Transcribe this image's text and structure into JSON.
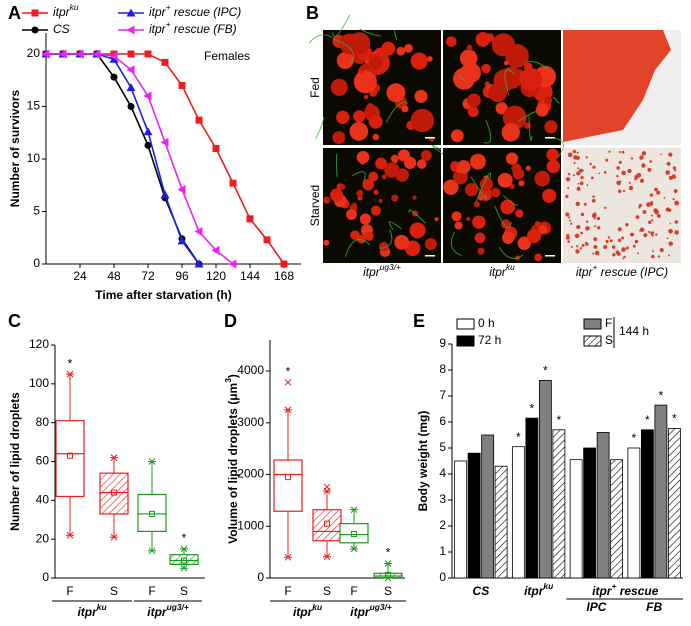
{
  "chart_data": [
    {
      "panel": "A",
      "type": "line",
      "annotation": "Females",
      "xlabel": "Time after starvation (h)",
      "ylabel": "Number of survivors",
      "x": [
        0,
        12,
        24,
        36,
        48,
        60,
        72,
        84,
        96,
        108,
        120,
        132,
        144,
        156,
        168
      ],
      "series": [
        {
          "name": [
            "itpr",
            "ku"
          ],
          "color": "#ee1c1c",
          "marker": "square",
          "values": [
            20,
            20,
            20,
            20,
            20,
            20,
            20,
            19.2,
            17,
            13.7,
            11,
            7.7,
            4.3,
            2.3,
            0
          ]
        },
        {
          "name": "CS",
          "color": "#000000",
          "marker": "circle",
          "values": [
            20,
            20,
            20,
            20,
            17.8,
            15,
            11.3,
            6.3,
            2.4,
            0,
            null,
            null,
            null,
            null,
            null
          ]
        },
        {
          "name": [
            "itpr",
            "+",
            " rescue (IPC)"
          ],
          "color": "#1f1fe0",
          "marker": "triangle-up",
          "values": [
            20,
            20,
            20,
            20,
            19.5,
            16.8,
            12.6,
            6.6,
            2.2,
            0,
            null,
            null,
            null,
            null,
            null
          ]
        },
        {
          "name": [
            "itpr",
            "+",
            " rescue (FB)"
          ],
          "color": "#ee22ee",
          "marker": "triangle-left",
          "values": [
            20,
            20,
            20,
            20,
            19.8,
            18.5,
            16,
            11.6,
            7.1,
            3.1,
            1.3,
            0,
            null,
            null,
            null
          ]
        }
      ],
      "xlim": [
        0,
        180
      ],
      "ylim": [
        0,
        22
      ],
      "xticks": [
        24,
        48,
        72,
        96,
        120,
        144,
        168
      ],
      "yticks": [
        0,
        5,
        10,
        15,
        20
      ]
    },
    {
      "panel": "C",
      "type": "box",
      "ylabel": "Number of lipid droplets",
      "ylim": [
        0,
        120
      ],
      "yticks": [
        0,
        20,
        40,
        60,
        80,
        100,
        120
      ],
      "categories": [
        "F",
        "S",
        "F",
        "S"
      ],
      "groups": [
        [
          "itpr",
          "ku"
        ],
        [
          "itpr",
          "ug3/+"
        ]
      ],
      "boxes": [
        {
          "color": "#ee1c1c",
          "hatch": false,
          "min": 22,
          "q1": 42,
          "median": 64,
          "q3": 81,
          "max": 105,
          "mean": 63,
          "label": "*"
        },
        {
          "color": "#ee1c1c",
          "hatch": true,
          "min": 21,
          "q1": 33,
          "median": 44,
          "q3": 54,
          "max": 62,
          "mean": 44,
          "label": null
        },
        {
          "color": "#1a9a1a",
          "hatch": false,
          "min": 14,
          "q1": 24,
          "median": 33,
          "q3": 43,
          "max": 60,
          "mean": 33,
          "label": null
        },
        {
          "color": "#1a9a1a",
          "hatch": true,
          "min": 5,
          "q1": 7,
          "median": 9,
          "q3": 12,
          "max": 15,
          "mean": 9,
          "label": "*"
        }
      ]
    },
    {
      "panel": "D",
      "type": "box",
      "ylabel": [
        "Volume of lipid droplets (μm",
        "3",
        ")"
      ],
      "ylim": [
        0,
        4600
      ],
      "yticks": [
        0,
        1000,
        2000,
        3000,
        4000
      ],
      "categories": [
        "F",
        "S",
        "F",
        "S"
      ],
      "groups": [
        [
          "itpr",
          "ku"
        ],
        [
          "itpr",
          "ug3/+"
        ]
      ],
      "boxes": [
        {
          "color": "#ee1c1c",
          "hatch": false,
          "min": 400,
          "q1": 1290,
          "median": 2000,
          "q3": 2280,
          "max": 3250,
          "mean": 1950,
          "outliers": [
            3780
          ],
          "label": "*"
        },
        {
          "color": "#ee1c1c",
          "hatch": true,
          "min": 410,
          "q1": 720,
          "median": 900,
          "q3": 1320,
          "max": 1680,
          "mean": 1050,
          "outliers": [
            1760
          ],
          "label": null
        },
        {
          "color": "#1a9a1a",
          "hatch": false,
          "min": 560,
          "q1": 680,
          "median": 840,
          "q3": 1050,
          "max": 1320,
          "mean": 850,
          "label": null
        },
        {
          "color": "#1a9a1a",
          "hatch": true,
          "min": 0,
          "q1": 10,
          "median": 40,
          "q3": 90,
          "max": 280,
          "mean": 60,
          "label": "*"
        }
      ]
    },
    {
      "panel": "E",
      "type": "bar",
      "ylabel": "Body weight (mg)",
      "ylim": [
        0,
        9
      ],
      "yticks": [
        0,
        1,
        2,
        3,
        4,
        5,
        6,
        7,
        8,
        9
      ],
      "categories": [
        "CS",
        [
          "itpr",
          "ku"
        ],
        "IPC",
        "FB"
      ],
      "group_label": [
        "itpr",
        "+",
        " rescue"
      ],
      "legend_group": "144 h",
      "series": [
        {
          "name": "0 h",
          "color": "#ffffff",
          "values": [
            4.5,
            5.05,
            4.55,
            5.0
          ],
          "labels": [
            null,
            "*",
            null,
            "*"
          ]
        },
        {
          "name": "72 h",
          "color": "#000000",
          "values": [
            4.8,
            6.15,
            5.0,
            5.7
          ],
          "labels": [
            null,
            "*",
            null,
            "*"
          ]
        },
        {
          "name": "F",
          "color": "#808080",
          "values": [
            5.5,
            7.6,
            5.6,
            6.65
          ],
          "labels": [
            null,
            "*",
            null,
            "*"
          ]
        },
        {
          "name": "S",
          "color": "#ffffff",
          "hatch": true,
          "values": [
            4.3,
            5.7,
            4.55,
            5.75
          ],
          "labels": [
            null,
            "*",
            null,
            "*"
          ]
        }
      ]
    }
  ],
  "images": {
    "panel": "B",
    "rows": [
      "Fed",
      "Starved"
    ],
    "columns": [
      [
        "itpr",
        "ug3/+"
      ],
      [
        "itpr",
        "ku"
      ],
      [
        "itpr",
        "+",
        " rescue (IPC)"
      ]
    ]
  }
}
